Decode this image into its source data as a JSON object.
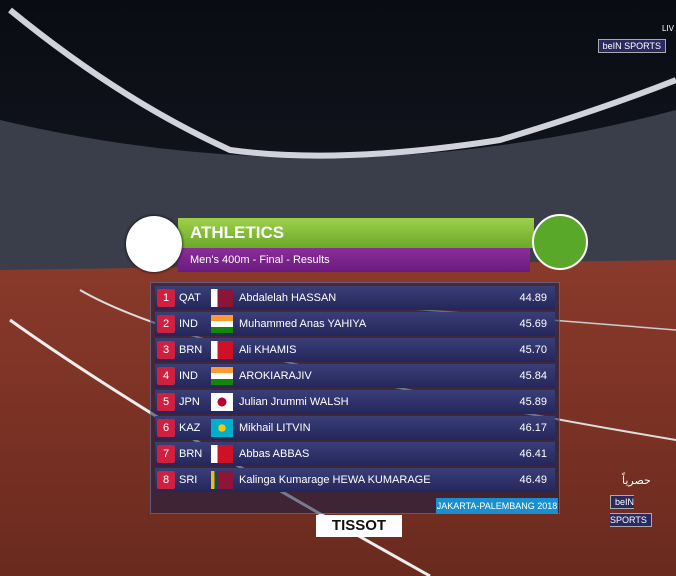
{
  "broadcaster": {
    "logo": "beIN SPORTS",
    "live": "LIV",
    "exclusive": "حصرياً",
    "logo_bottom": "beIN SPORTS"
  },
  "header": {
    "title": "ATHLETICS",
    "subtitle": "Men's 400m - Final - Results"
  },
  "table": {
    "rows": [
      [
        "1",
        "QAT",
        "Abdalelah HASSAN",
        "44.89"
      ],
      [
        "2",
        "IND",
        "Muhammed Anas YAHIYA",
        "45.69"
      ],
      [
        "3",
        "BRN",
        "Ali KHAMIS",
        "45.70"
      ],
      [
        "4",
        "IND",
        "AROKIARAJIV",
        "45.84"
      ],
      [
        "5",
        "JPN",
        "Julian Jrummi WALSH",
        "45.89"
      ],
      [
        "6",
        "KAZ",
        "Mikhail LITVIN",
        "46.17"
      ],
      [
        "7",
        "BRN",
        "Abbas ABBAS",
        "46.41"
      ],
      [
        "8",
        "SRI",
        "Kalinga Kumarage HEWA KUMARAGE",
        "46.49"
      ]
    ]
  },
  "footer": {
    "event": "JAKARTA-PALEMBANG 2018",
    "sponsor": "TISSOT"
  }
}
